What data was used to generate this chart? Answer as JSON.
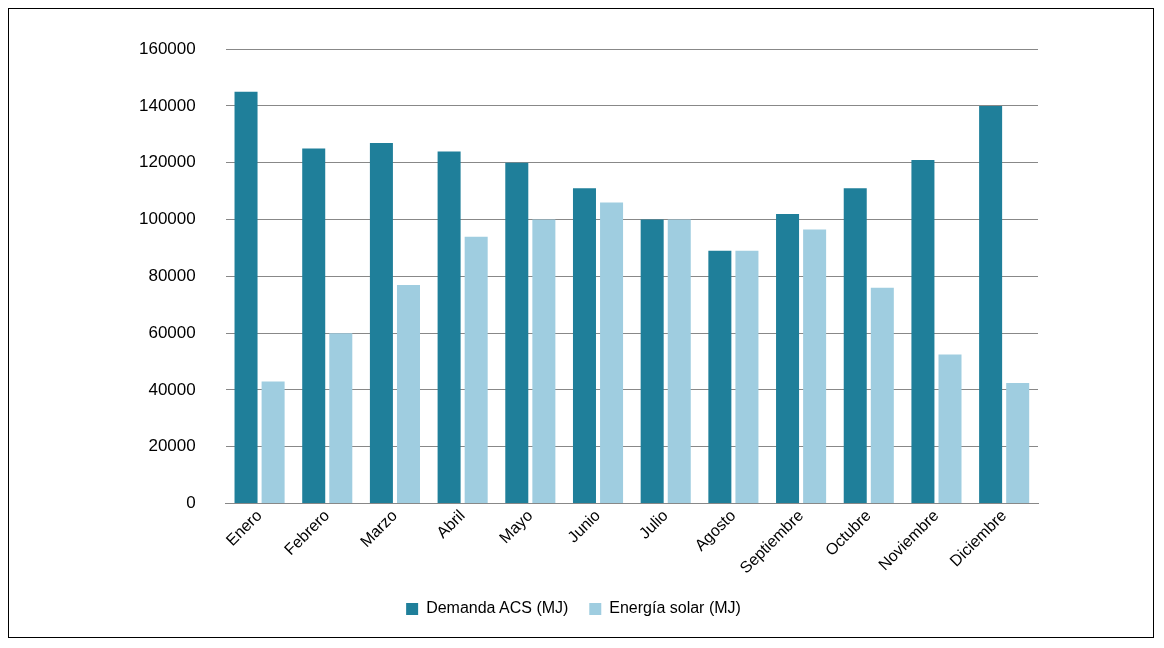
{
  "chart_data": {
    "type": "bar",
    "categories": [
      "Enero",
      "Febrero",
      "Marzo",
      "Abril",
      "Mayo",
      "Junio",
      "Julio",
      "Agosto",
      "Septiembre",
      "Octubre",
      "Noviembre",
      "Diciembre"
    ],
    "series": [
      {
        "name": "Demanda ACS (MJ)",
        "color": "#1f7f9a",
        "values": [
          145000,
          125000,
          127000,
          124000,
          120000,
          111000,
          100000,
          89000,
          102000,
          111000,
          121000,
          140000
        ]
      },
      {
        "name": "Energía solar (MJ)",
        "color": "#9fcde0",
        "values": [
          43000,
          60000,
          77000,
          94000,
          100000,
          106000,
          100000,
          89000,
          96500,
          76000,
          52500,
          42500
        ]
      }
    ],
    "ylim": [
      0,
      160000
    ],
    "yticks": [
      0,
      20000,
      40000,
      60000,
      80000,
      100000,
      120000,
      140000,
      160000
    ],
    "grid": "y",
    "legend": "bottom"
  }
}
